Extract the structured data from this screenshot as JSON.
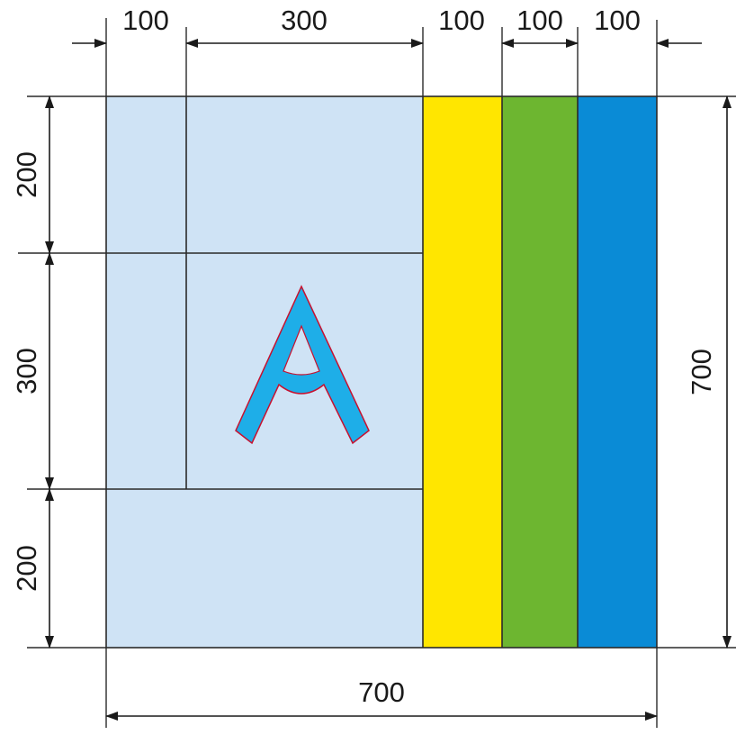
{
  "dimensions": {
    "top": [
      "100",
      "300",
      "100",
      "100",
      "100"
    ],
    "left": [
      "200",
      "300",
      "200"
    ],
    "right_total": "700",
    "bottom_total": "700"
  },
  "label": {
    "letter": "A"
  },
  "colors": {
    "panel_background": "#cfe3f5",
    "yellow_strip": "#ffe600",
    "green_strip": "#6db630",
    "blue_strip": "#0a8bd6",
    "letter_fill": "#1eaee8",
    "letter_outline": "#c8102e",
    "line": "#1a1a1a"
  }
}
